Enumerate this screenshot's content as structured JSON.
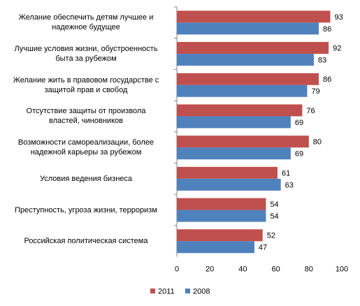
{
  "chart_data": {
    "type": "hbar",
    "categories": [
      "Желание обеспечить детям лучшее и\nнадежное будущее",
      "Лучшие условия жизни, обустроенность\nбыта за рубежом",
      "Желание жить в правовом государстве с\nзащитой прав и свобод",
      "Отсутствие защиты от произвола\nвластей, чиновников",
      "Возможности самореализации, более\nнадежной карьеры за рубежом",
      "Условия ведения бизнеса",
      "Преступность, угроза жизни, терроризм",
      "Российская политическая система"
    ],
    "series": [
      {
        "name": "2011",
        "color": "#c0504d",
        "values": [
          93,
          92,
          86,
          76,
          80,
          61,
          54,
          52
        ]
      },
      {
        "name": "2008",
        "color": "#4f81bd",
        "values": [
          86,
          83,
          79,
          69,
          69,
          63,
          54,
          47
        ]
      }
    ],
    "xlim": [
      0,
      100
    ],
    "xticks": [
      0,
      20,
      40,
      60,
      80,
      100
    ],
    "legend": "bottom"
  }
}
